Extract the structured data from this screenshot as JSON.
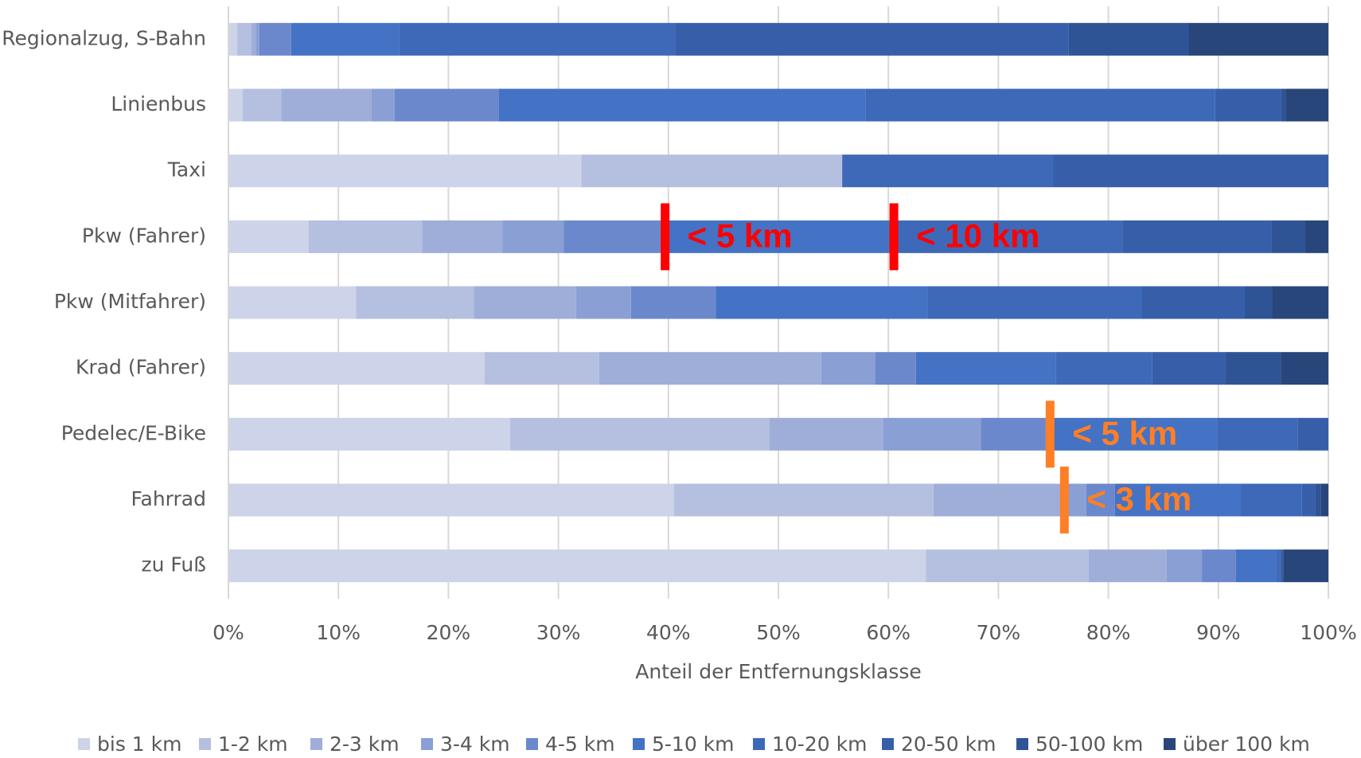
{
  "chart_data": {
    "type": "stacked_barh",
    "x_label": "Anteil der Entfernungsklasse",
    "categories": [
      "Regionalzug, S-Bahn",
      "Linienbus",
      "Taxi",
      "Pkw (Fahrer)",
      "Pkw (Mitfahrer)",
      "Krad (Fahrer)",
      "Pedelec/E-Bike",
      "Fahrrad",
      "zu Fuß"
    ],
    "series": [
      {
        "name": "bis 1 km",
        "color": "#cdd3e8",
        "values": [
          0.8,
          1.3,
          32.1,
          7.3,
          11.6,
          23.3,
          25.6,
          40.5,
          63.4
        ]
      },
      {
        "name": "1-2 km",
        "color": "#b5c0e0",
        "values": [
          1.3,
          3.5,
          23.7,
          10.3,
          10.7,
          10.4,
          23.6,
          23.6,
          14.8
        ]
      },
      {
        "name": "2-3 km",
        "color": "#9faed9",
        "values": [
          0.4,
          8.2,
          0,
          7.3,
          9.3,
          20.2,
          10.3,
          11.9,
          7.1
        ]
      },
      {
        "name": "3-4 km",
        "color": "#8a9fd4",
        "values": [
          0.3,
          2.1,
          0,
          5.6,
          5.0,
          4.9,
          8.9,
          2.0,
          3.2
        ]
      },
      {
        "name": "4-5 km",
        "color": "#6c88cc",
        "values": [
          2.9,
          9.5,
          0,
          9.0,
          7.7,
          3.7,
          5.9,
          2.6,
          3.1
        ]
      },
      {
        "name": "5-10 km",
        "color": "#4472c4",
        "values": [
          9.8,
          33.3,
          0,
          20.5,
          19.3,
          12.7,
          15.6,
          11.4,
          3.7
        ]
      },
      {
        "name": "10-20 km",
        "color": "#3e69b9",
        "values": [
          25.1,
          31.8,
          19.2,
          21.3,
          19.4,
          8.8,
          7.3,
          5.6,
          0.3
        ]
      },
      {
        "name": "20-50 km",
        "color": "#375fa9",
        "values": [
          35.8,
          6.0,
          25.0,
          13.5,
          9.4,
          6.6,
          2.8,
          1.2,
          0.3
        ]
      },
      {
        "name": "50-100 km",
        "color": "#2f5496",
        "values": [
          10.9,
          0.4,
          0,
          3.1,
          2.5,
          5.1,
          0,
          0.5,
          0
        ]
      },
      {
        "name": "über 100 km",
        "color": "#284679",
        "values": [
          12.7,
          3.9,
          0,
          2.1,
          5.1,
          4.3,
          0,
          0.7,
          4.1
        ]
      }
    ],
    "xlim": [
      0,
      100
    ],
    "xticks": [
      {
        "value": 0,
        "label": "0%"
      },
      {
        "value": 10,
        "label": "10%"
      },
      {
        "value": 20,
        "label": "20%"
      },
      {
        "value": 30,
        "label": "30%"
      },
      {
        "value": 40,
        "label": "40%"
      },
      {
        "value": 50,
        "label": "50%"
      },
      {
        "value": 60,
        "label": "60%"
      },
      {
        "value": 70,
        "label": "70%"
      },
      {
        "value": 80,
        "label": "80%"
      },
      {
        "value": 90,
        "label": "90%"
      },
      {
        "value": 100,
        "label": "100%"
      }
    ],
    "grid": true,
    "legend": "bottom",
    "annotations": [
      {
        "text": "< 5 km",
        "x": 39.7,
        "category": 3,
        "color": "#ff0000"
      },
      {
        "text": "< 10 km",
        "x": 60.5,
        "category": 3,
        "color": "#ff0000"
      },
      {
        "text": "< 5 km",
        "x": 74.7,
        "category": 6,
        "color": "#ff7f27"
      },
      {
        "text": "< 3 km",
        "x": 76.0,
        "category": 7,
        "color": "#ff7f27"
      }
    ]
  }
}
